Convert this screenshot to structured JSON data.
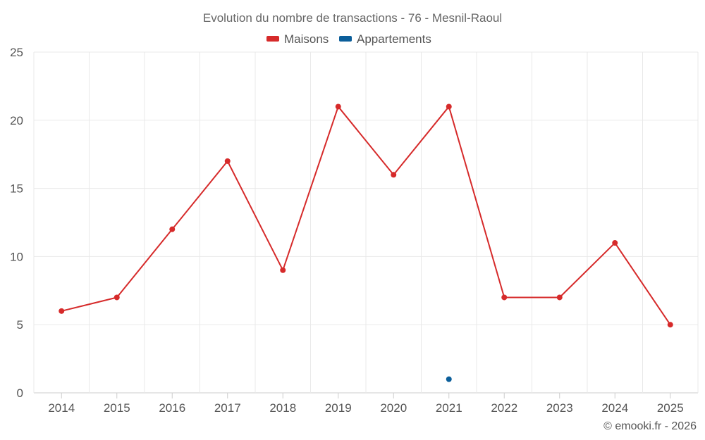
{
  "chart_data": {
    "type": "line",
    "title": "Evolution du nombre de transactions - 76 - Mesnil-Raoul",
    "categories": [
      "2014",
      "2015",
      "2016",
      "2017",
      "2018",
      "2019",
      "2020",
      "2021",
      "2022",
      "2023",
      "2024",
      "2025"
    ],
    "ylim": [
      0,
      25
    ],
    "yticks": [
      0,
      5,
      10,
      15,
      20,
      25
    ],
    "grid": true,
    "legend_position": "top-center",
    "series": [
      {
        "name": "Maisons",
        "color": "#d62a2a",
        "values": [
          6,
          7,
          12,
          17,
          9,
          21,
          16,
          21,
          7,
          7,
          11,
          5
        ]
      },
      {
        "name": "Appartements",
        "color": "#0b5e9a",
        "values": [
          null,
          null,
          null,
          null,
          null,
          null,
          null,
          1,
          null,
          null,
          null,
          null
        ]
      }
    ]
  },
  "credit": "© emooki.fr - 2026"
}
